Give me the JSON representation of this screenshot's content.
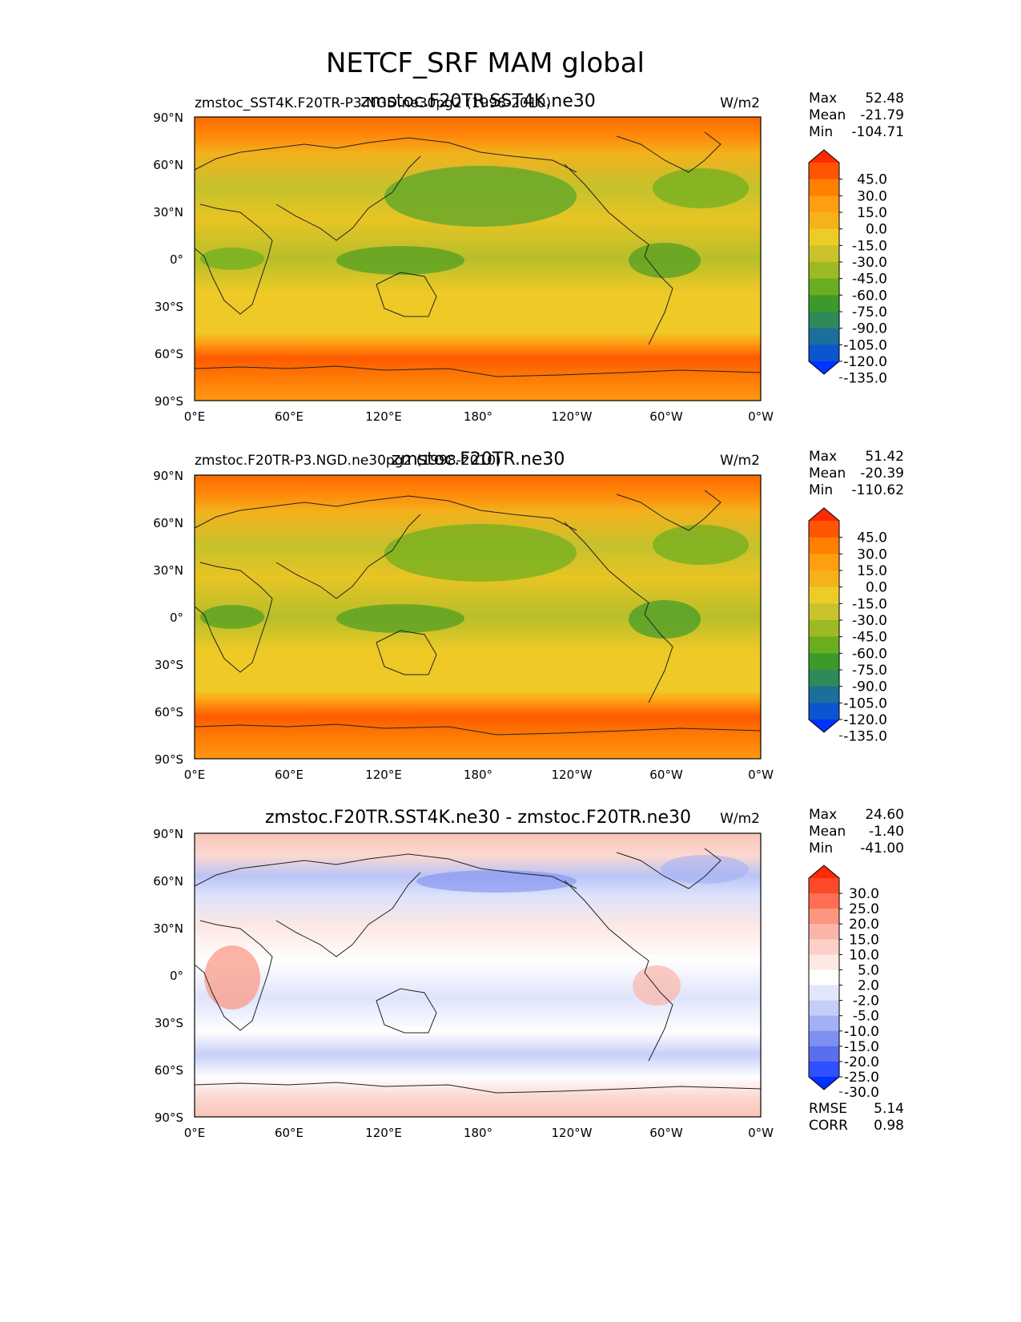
{
  "figure": {
    "title": "NETCF_SRF MAM global"
  },
  "panels": [
    {
      "left_label": "zmstoc_SST4K.F20TR-P3.NGD.ne30pg2 (1998-2010)",
      "center_title": "zmstoc.F20TR.SST4K.ne30",
      "units": "W/m2",
      "stats": [
        {
          "label": "Max",
          "value": "52.48"
        },
        {
          "label": "Mean",
          "value": "-21.79"
        },
        {
          "label": "Min",
          "value": "-104.71"
        }
      ],
      "colorbar": {
        "labels": [
          "45.0",
          "30.0",
          "15.0",
          "0.0",
          "-15.0",
          "-30.0",
          "-45.0",
          "-60.0",
          "-75.0",
          "-90.0",
          "-105.0",
          "-120.0",
          "-135.0"
        ],
        "colors": [
          "#ff2a00",
          "#ff5500",
          "#ff7f00",
          "#ff9f10",
          "#f5b21b",
          "#eecc27",
          "#c9c22a",
          "#9bba23",
          "#6aae20",
          "#3d9a2a",
          "#2e8a5a",
          "#1b6f9a",
          "#0b55d0",
          "#0033ff"
        ]
      }
    },
    {
      "left_label": "zmstoc.F20TR-P3.NGD.ne30pg2 (1998-2010)",
      "center_title": "zmstoc.F20TR.ne30",
      "units": "W/m2",
      "stats": [
        {
          "label": "Max",
          "value": "51.42"
        },
        {
          "label": "Mean",
          "value": "-20.39"
        },
        {
          "label": "Min",
          "value": "-110.62"
        }
      ],
      "colorbar": {
        "labels": [
          "45.0",
          "30.0",
          "15.0",
          "0.0",
          "-15.0",
          "-30.0",
          "-45.0",
          "-60.0",
          "-75.0",
          "-90.0",
          "-105.0",
          "-120.0",
          "-135.0"
        ],
        "colors": [
          "#ff2a00",
          "#ff5500",
          "#ff7f00",
          "#ff9f10",
          "#f5b21b",
          "#eecc27",
          "#c9c22a",
          "#9bba23",
          "#6aae20",
          "#3d9a2a",
          "#2e8a5a",
          "#1b6f9a",
          "#0b55d0",
          "#0033ff"
        ]
      }
    },
    {
      "left_label": "",
      "center_title": "zmstoc.F20TR.SST4K.ne30 - zmstoc.F20TR.ne30",
      "units": "W/m2",
      "stats": [
        {
          "label": "Max",
          "value": "24.60"
        },
        {
          "label": "Mean",
          "value": "-1.40"
        },
        {
          "label": "Min",
          "value": "-41.00"
        }
      ],
      "bottom_stats": [
        {
          "label": "RMSE",
          "value": "5.14"
        },
        {
          "label": "CORR",
          "value": "0.98"
        }
      ],
      "colorbar": {
        "labels": [
          "30.0",
          "25.0",
          "20.0",
          "15.0",
          "10.0",
          "5.0",
          "2.0",
          "-2.0",
          "-5.0",
          "-10.0",
          "-15.0",
          "-20.0",
          "-25.0",
          "-30.0"
        ],
        "colors": [
          "#ff2a00",
          "#ff4a2a",
          "#ff6e55",
          "#fc9680",
          "#fbb5a8",
          "#fbd0c8",
          "#fde8e4",
          "#ffffff",
          "#e2e6fb",
          "#c6cdf8",
          "#a4b0f4",
          "#7f8ff0",
          "#5a6eee",
          "#3150ff",
          "#0033ff"
        ]
      }
    }
  ],
  "axes": {
    "lat_ticks": [
      "90°N",
      "60°N",
      "30°N",
      "0°",
      "30°S",
      "60°S",
      "90°S"
    ],
    "lon_ticks": [
      "0°E",
      "60°E",
      "120°E",
      "180°",
      "120°W",
      "60°W",
      "0°W"
    ]
  }
}
